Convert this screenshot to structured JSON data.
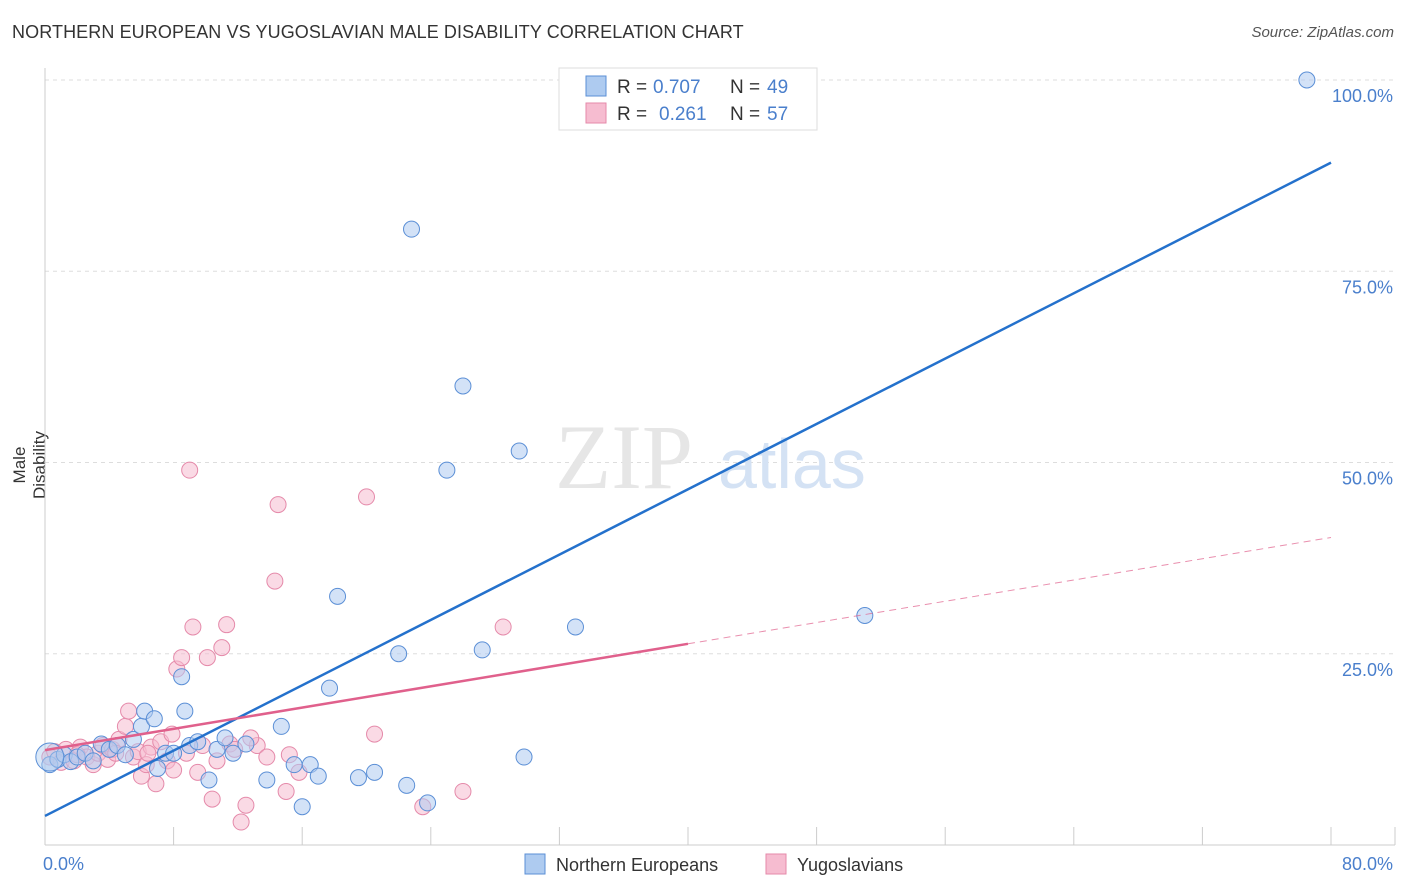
{
  "title": "NORTHERN EUROPEAN VS YUGOSLAVIAN MALE DISABILITY CORRELATION CHART",
  "source": "Source: ZipAtlas.com",
  "watermark": {
    "zip": "ZIP",
    "atlas": "atlas"
  },
  "legend_top": [
    {
      "r_label": "R =",
      "r_value": "0.707",
      "n_label": "N =",
      "n_value": "49"
    },
    {
      "r_label": "R =",
      "r_value": "0.261",
      "n_label": "N =",
      "n_value": "57"
    }
  ],
  "legend_bottom": [
    "Northern Europeans",
    "Yugoslavians"
  ],
  "colors": {
    "blue_fill": "#aecbf0",
    "blue_stroke": "#5b8fd6",
    "blue_line": "#2471cc",
    "pink_fill": "#f6bcd0",
    "pink_stroke": "#e58aaa",
    "pink_line": "#e0608c",
    "tick_label": "#4a7fcc",
    "grid": "#dddddd"
  },
  "chart_data": {
    "type": "scatter",
    "title": "NORTHERN EUROPEAN VS YUGOSLAVIAN MALE DISABILITY CORRELATION CHART",
    "xlabel": "",
    "ylabel": "Male Disability",
    "xlim": [
      0,
      80
    ],
    "ylim": [
      0,
      100
    ],
    "x_tick_labels": [
      "0.0%",
      "80.0%"
    ],
    "y_tick_labels": [
      "25.0%",
      "50.0%",
      "75.0%",
      "100.0%"
    ],
    "y_ticks": [
      25,
      50,
      75,
      100
    ],
    "grid": true,
    "legend_position": "top-center",
    "series": [
      {
        "name": "Northern Europeans",
        "r": 0.707,
        "n": 49,
        "trend": {
          "x": [
            0,
            80
          ],
          "y": [
            3.8,
            89.2
          ],
          "dashed_from": null
        },
        "points": [
          [
            0.3,
            10.5
          ],
          [
            0.8,
            11.2
          ],
          [
            1.2,
            11.8
          ],
          [
            1.6,
            10.9
          ],
          [
            2.0,
            11.5
          ],
          [
            2.5,
            12.0
          ],
          [
            3.0,
            11.0
          ],
          [
            3.5,
            13.2
          ],
          [
            4.0,
            12.5
          ],
          [
            4.5,
            13.0
          ],
          [
            5.0,
            11.8
          ],
          [
            5.5,
            13.8
          ],
          [
            6.0,
            15.5
          ],
          [
            6.2,
            17.5
          ],
          [
            6.8,
            16.5
          ],
          [
            7.0,
            10.0
          ],
          [
            7.5,
            12.0
          ],
          [
            8.0,
            12.0
          ],
          [
            8.5,
            22.0
          ],
          [
            8.7,
            17.5
          ],
          [
            9.0,
            13.0
          ],
          [
            9.5,
            13.5
          ],
          [
            10.2,
            8.5
          ],
          [
            10.7,
            12.5
          ],
          [
            11.2,
            14.0
          ],
          [
            11.7,
            12.0
          ],
          [
            12.5,
            13.2
          ],
          [
            13.8,
            8.5
          ],
          [
            14.7,
            15.5
          ],
          [
            15.5,
            10.5
          ],
          [
            16.0,
            5.0
          ],
          [
            16.5,
            10.5
          ],
          [
            17.0,
            9.0
          ],
          [
            17.7,
            20.5
          ],
          [
            18.2,
            32.5
          ],
          [
            19.5,
            8.8
          ],
          [
            20.5,
            9.5
          ],
          [
            22.0,
            25.0
          ],
          [
            22.5,
            7.8
          ],
          [
            22.8,
            80.5
          ],
          [
            23.8,
            5.5
          ],
          [
            25.0,
            49.0
          ],
          [
            26.0,
            60.0
          ],
          [
            27.2,
            25.5
          ],
          [
            29.5,
            51.5
          ],
          [
            29.8,
            11.5
          ],
          [
            33.0,
            28.5
          ],
          [
            51.0,
            30.0
          ],
          [
            78.5,
            100.0
          ]
        ]
      },
      {
        "name": "Yugoslavians",
        "r": 0.261,
        "n": 57,
        "trend": {
          "x": [
            0,
            80
          ],
          "y": [
            12.4,
            40.2
          ],
          "dashed_from": 40
        },
        "points": [
          [
            0.3,
            11.5
          ],
          [
            0.6,
            12.2
          ],
          [
            1.0,
            10.8
          ],
          [
            1.3,
            12.5
          ],
          [
            1.8,
            11.0
          ],
          [
            2.2,
            12.8
          ],
          [
            2.6,
            11.5
          ],
          [
            3.0,
            10.5
          ],
          [
            3.3,
            12.0
          ],
          [
            3.6,
            13.0
          ],
          [
            3.9,
            11.2
          ],
          [
            4.2,
            12.5
          ],
          [
            4.6,
            13.8
          ],
          [
            5.0,
            15.5
          ],
          [
            5.2,
            17.5
          ],
          [
            5.5,
            11.5
          ],
          [
            5.8,
            12.2
          ],
          [
            6.0,
            9.0
          ],
          [
            6.3,
            10.5
          ],
          [
            6.6,
            12.8
          ],
          [
            6.9,
            8.0
          ],
          [
            7.2,
            13.5
          ],
          [
            7.6,
            11.0
          ],
          [
            7.9,
            14.5
          ],
          [
            8.2,
            23.0
          ],
          [
            8.5,
            24.5
          ],
          [
            8.8,
            12.0
          ],
          [
            9.0,
            49.0
          ],
          [
            9.2,
            28.5
          ],
          [
            9.5,
            9.5
          ],
          [
            9.8,
            13.0
          ],
          [
            10.1,
            24.5
          ],
          [
            10.4,
            6.0
          ],
          [
            10.7,
            11.0
          ],
          [
            11.0,
            25.8
          ],
          [
            11.3,
            28.8
          ],
          [
            11.5,
            13.2
          ],
          [
            11.8,
            12.5
          ],
          [
            12.2,
            3.0
          ],
          [
            12.5,
            5.2
          ],
          [
            13.2,
            13.0
          ],
          [
            13.8,
            11.5
          ],
          [
            14.3,
            34.5
          ],
          [
            14.5,
            44.5
          ],
          [
            15.0,
            7.0
          ],
          [
            15.8,
            9.5
          ],
          [
            20.0,
            45.5
          ],
          [
            20.5,
            14.5
          ],
          [
            23.5,
            5.0
          ],
          [
            26.0,
            7.0
          ],
          [
            28.5,
            28.5
          ],
          [
            2.0,
            11.8
          ],
          [
            4.4,
            12.0
          ],
          [
            6.4,
            12.0
          ],
          [
            8.0,
            9.8
          ],
          [
            12.8,
            14.0
          ],
          [
            15.2,
            11.8
          ]
        ]
      }
    ]
  }
}
